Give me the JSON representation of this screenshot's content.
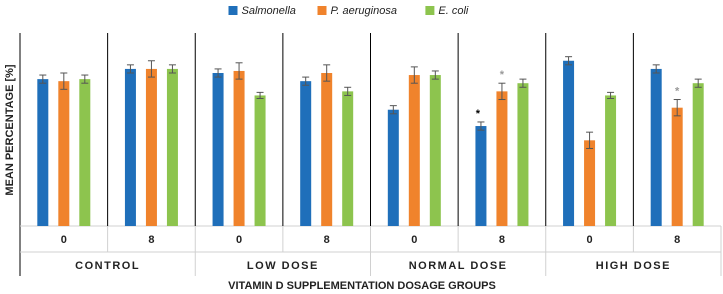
{
  "chart_data": {
    "type": "bar",
    "x_label": "VITAMIN D SUPPLEMENTATION DOSAGE GROUPS",
    "y_label": "MEAN PERCENTAGE [%]",
    "categories": [
      "0",
      "8",
      "0",
      "8",
      "0",
      "8",
      "0",
      "8"
    ],
    "groups": [
      "CONTROL",
      "LOW DOSE",
      "NORMAL DOSE",
      "HIGH DOSE"
    ],
    "ylim": [
      0,
      100
    ],
    "legend": "top",
    "series": [
      {
        "name": "Salmonella",
        "color": "#1f6fba",
        "values": [
          72,
          77,
          75,
          71,
          57,
          49,
          81,
          77
        ],
        "errors": [
          2,
          2,
          2,
          2,
          2,
          2,
          2,
          2
        ],
        "annotations": [
          null,
          null,
          null,
          null,
          null,
          "*",
          null,
          null
        ],
        "annotation_color": "#000000"
      },
      {
        "name": "P. aeruginosa",
        "color": "#f0832c",
        "values": [
          71,
          77,
          76,
          75,
          74,
          66,
          42,
          58
        ],
        "errors": [
          4,
          4,
          4,
          4,
          4,
          4,
          4,
          4
        ],
        "annotations": [
          null,
          null,
          null,
          null,
          null,
          "*",
          null,
          "*"
        ],
        "annotation_color": "#999999"
      },
      {
        "name": "E. coli",
        "color": "#8dc44e",
        "values": [
          72,
          77,
          64,
          66,
          74,
          70,
          64,
          70
        ],
        "errors": [
          2,
          2,
          1.5,
          2,
          2,
          2,
          1.5,
          2
        ],
        "annotations": [
          null,
          null,
          null,
          null,
          null,
          null,
          null,
          null
        ],
        "annotation_color": "#999999"
      }
    ]
  }
}
